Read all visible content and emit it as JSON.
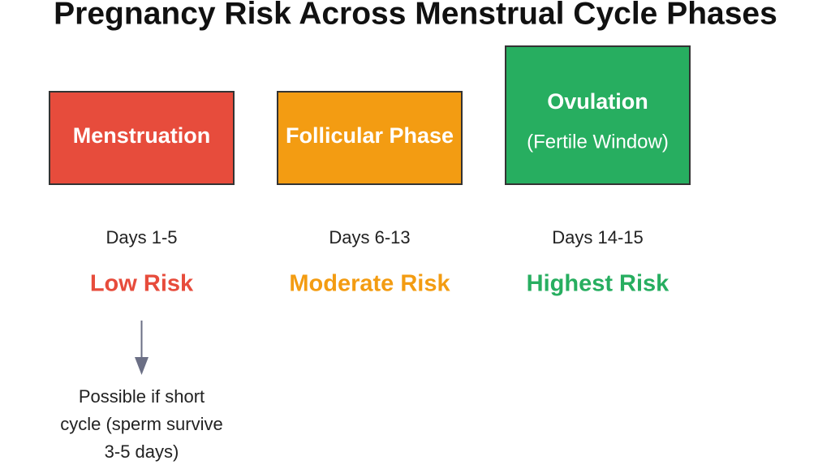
{
  "title": "Pregnancy Risk Across Menstrual Cycle Phases",
  "phases": [
    {
      "label": "Menstruation",
      "days": "Days 1-5",
      "risk": "Low Risk"
    },
    {
      "label": "Follicular Phase",
      "days": "Days 6-13",
      "risk": "Moderate Risk"
    },
    {
      "label": "Ovulation",
      "sublabel": "(Fertile Window)",
      "days": "Days 14-15",
      "risk": "Highest Risk"
    }
  ],
  "note": {
    "lines": [
      "Possible if short",
      "cycle (sperm survive",
      "3-5 days)"
    ]
  }
}
